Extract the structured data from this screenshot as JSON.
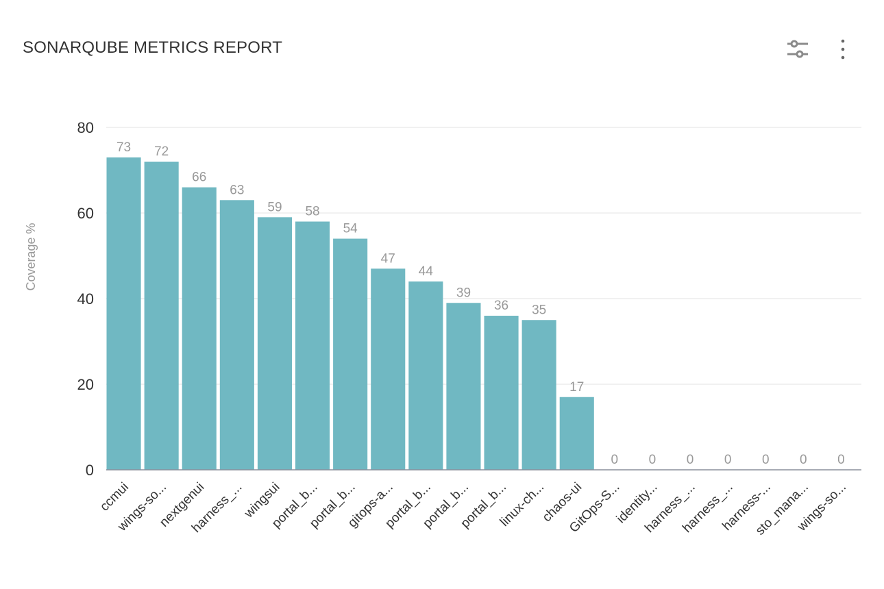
{
  "header": {
    "title": "SONARQUBE METRICS REPORT",
    "icons": [
      "sliders-icon",
      "more-vertical-icon"
    ]
  },
  "chart_data": {
    "type": "bar",
    "title": "",
    "xlabel": "",
    "ylabel": "Coverage %",
    "ylim": [
      0,
      80
    ],
    "yticks": [
      0,
      20,
      40,
      60,
      80
    ],
    "grid": true,
    "bar_color": "#70b8c2",
    "categories": [
      "ccmui",
      "wings-so...",
      "nextgenui",
      "harness_...",
      "wingsui",
      "portal_b...",
      "portal_b...",
      "gitops-a...",
      "portal_b...",
      "portal_b...",
      "portal_b...",
      "linux-ch...",
      "chaos-ui",
      "GitOps-S...",
      "identity...",
      "harness_...",
      "harness_...",
      "harness-...",
      "sto_mana...",
      "wings-so..."
    ],
    "values": [
      73,
      72,
      66,
      63,
      59,
      58,
      54,
      47,
      44,
      39,
      36,
      35,
      17,
      0,
      0,
      0,
      0,
      0,
      0,
      0
    ]
  }
}
